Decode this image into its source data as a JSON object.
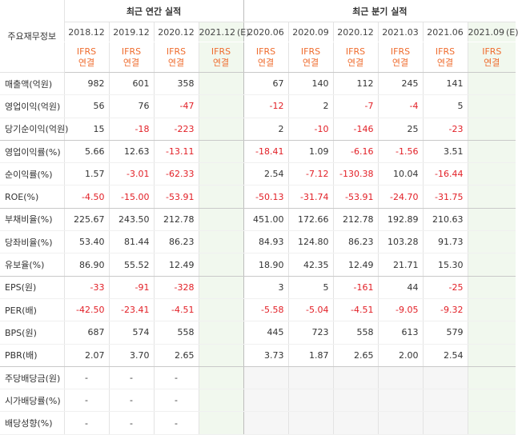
{
  "header": {
    "row_label": "주요재무정보",
    "annual_group": "최근 연간 실적",
    "quarter_group": "최근 분기 실적",
    "annual_periods": [
      "2018.12",
      "2019.12",
      "2020.12",
      "2021.12"
    ],
    "quarter_periods": [
      "2020.06",
      "2020.09",
      "2020.12",
      "2021.03",
      "2021.06",
      "2021.09"
    ],
    "estimate_mark": "(E)",
    "ifrs_line1": "IFRS",
    "ifrs_line2": "연결"
  },
  "rows": [
    {
      "label": "매출액(억원)",
      "annual": [
        "982",
        "601",
        "358",
        ""
      ],
      "quarter": [
        "67",
        "140",
        "112",
        "245",
        "141",
        ""
      ]
    },
    {
      "label": "영업이익(억원)",
      "annual": [
        "56",
        "76",
        "-47",
        ""
      ],
      "quarter": [
        "-12",
        "2",
        "-7",
        "-4",
        "5",
        ""
      ]
    },
    {
      "label": "당기순이익(억원)",
      "annual": [
        "15",
        "-18",
        "-223",
        ""
      ],
      "quarter": [
        "2",
        "-10",
        "-146",
        "25",
        "-23",
        ""
      ]
    },
    {
      "label": "영업이익률(%)",
      "annual": [
        "5.66",
        "12.63",
        "-13.11",
        ""
      ],
      "quarter": [
        "-18.41",
        "1.09",
        "-6.16",
        "-1.56",
        "3.51",
        ""
      ]
    },
    {
      "label": "순이익률(%)",
      "annual": [
        "1.57",
        "-3.01",
        "-62.33",
        ""
      ],
      "quarter": [
        "2.54",
        "-7.12",
        "-130.38",
        "10.04",
        "-16.44",
        ""
      ]
    },
    {
      "label": "ROE(%)",
      "annual": [
        "-4.50",
        "-15.00",
        "-53.91",
        ""
      ],
      "quarter": [
        "-50.13",
        "-31.74",
        "-53.91",
        "-24.70",
        "-31.75",
        ""
      ]
    },
    {
      "label": "부채비율(%)",
      "annual": [
        "225.67",
        "243.50",
        "212.78",
        ""
      ],
      "quarter": [
        "451.00",
        "172.66",
        "212.78",
        "192.89",
        "210.63",
        ""
      ]
    },
    {
      "label": "당좌비율(%)",
      "annual": [
        "53.40",
        "81.44",
        "86.23",
        ""
      ],
      "quarter": [
        "84.93",
        "124.80",
        "86.23",
        "103.28",
        "91.73",
        ""
      ]
    },
    {
      "label": "유보율(%)",
      "annual": [
        "86.90",
        "55.52",
        "12.49",
        ""
      ],
      "quarter": [
        "18.90",
        "42.35",
        "12.49",
        "21.71",
        "15.30",
        ""
      ]
    },
    {
      "label": "EPS(원)",
      "annual": [
        "-33",
        "-91",
        "-328",
        ""
      ],
      "quarter": [
        "3",
        "5",
        "-161",
        "44",
        "-25",
        ""
      ]
    },
    {
      "label": "PER(배)",
      "annual": [
        "-42.50",
        "-23.41",
        "-4.51",
        ""
      ],
      "quarter": [
        "-5.58",
        "-5.04",
        "-4.51",
        "-9.05",
        "-9.32",
        ""
      ]
    },
    {
      "label": "BPS(원)",
      "annual": [
        "687",
        "574",
        "558",
        ""
      ],
      "quarter": [
        "445",
        "723",
        "558",
        "613",
        "579",
        ""
      ]
    },
    {
      "label": "PBR(배)",
      "annual": [
        "2.07",
        "3.70",
        "2.65",
        ""
      ],
      "quarter": [
        "3.73",
        "1.87",
        "2.65",
        "2.00",
        "2.54",
        ""
      ]
    },
    {
      "label": "주당배당금(원)",
      "annual": [
        "-",
        "-",
        "-",
        ""
      ],
      "quarter": [
        "",
        "",
        "",
        "",
        "",
        ""
      ]
    },
    {
      "label": "시가배당률(%)",
      "annual": [
        "-",
        "-",
        "-",
        ""
      ],
      "quarter": [
        "",
        "",
        "",
        "",
        "",
        ""
      ]
    },
    {
      "label": "배당성향(%)",
      "annual": [
        "-",
        "-",
        "-",
        ""
      ],
      "quarter": [
        "",
        "",
        "",
        "",
        "",
        ""
      ]
    }
  ],
  "colors": {
    "negative": "#e21f26",
    "ifrs": "#ef6c2e",
    "estimate_bg": "#f1f8ee",
    "estimate_text": "#5a9a3a"
  }
}
